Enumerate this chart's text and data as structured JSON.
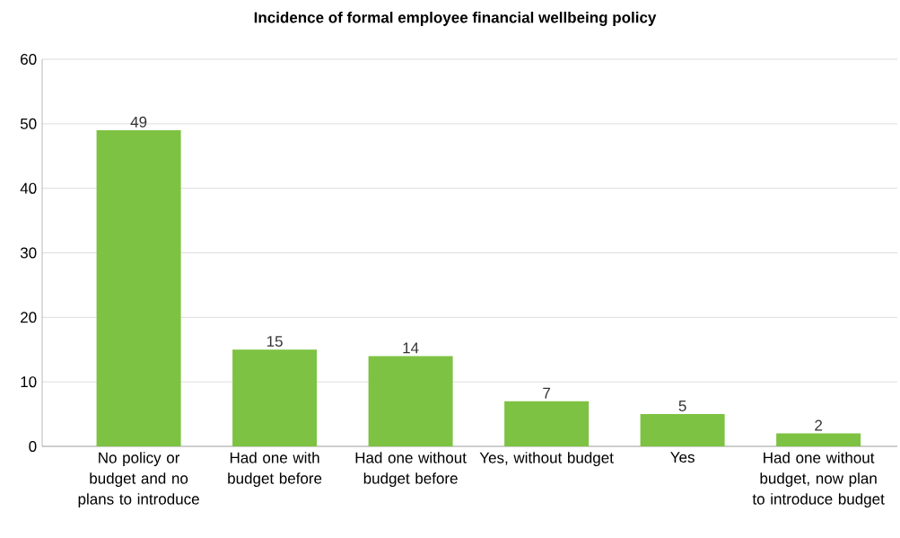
{
  "chart_data": {
    "type": "bar",
    "title": "Incidence of formal employee financial wellbeing policy",
    "categories": [
      "No policy or budget and no plans to introduce",
      "Had one with budget before",
      "Had one without budget before",
      "Yes, without budget",
      "Yes",
      "Had one without budget, now plan to introduce budget"
    ],
    "values": [
      49,
      15,
      14,
      7,
      5,
      2
    ],
    "color": "#7dc242",
    "ylim": [
      0,
      60
    ],
    "yticks": [
      0,
      10,
      20,
      30,
      40,
      50,
      60
    ],
    "grid": "y",
    "data_labels": true
  }
}
